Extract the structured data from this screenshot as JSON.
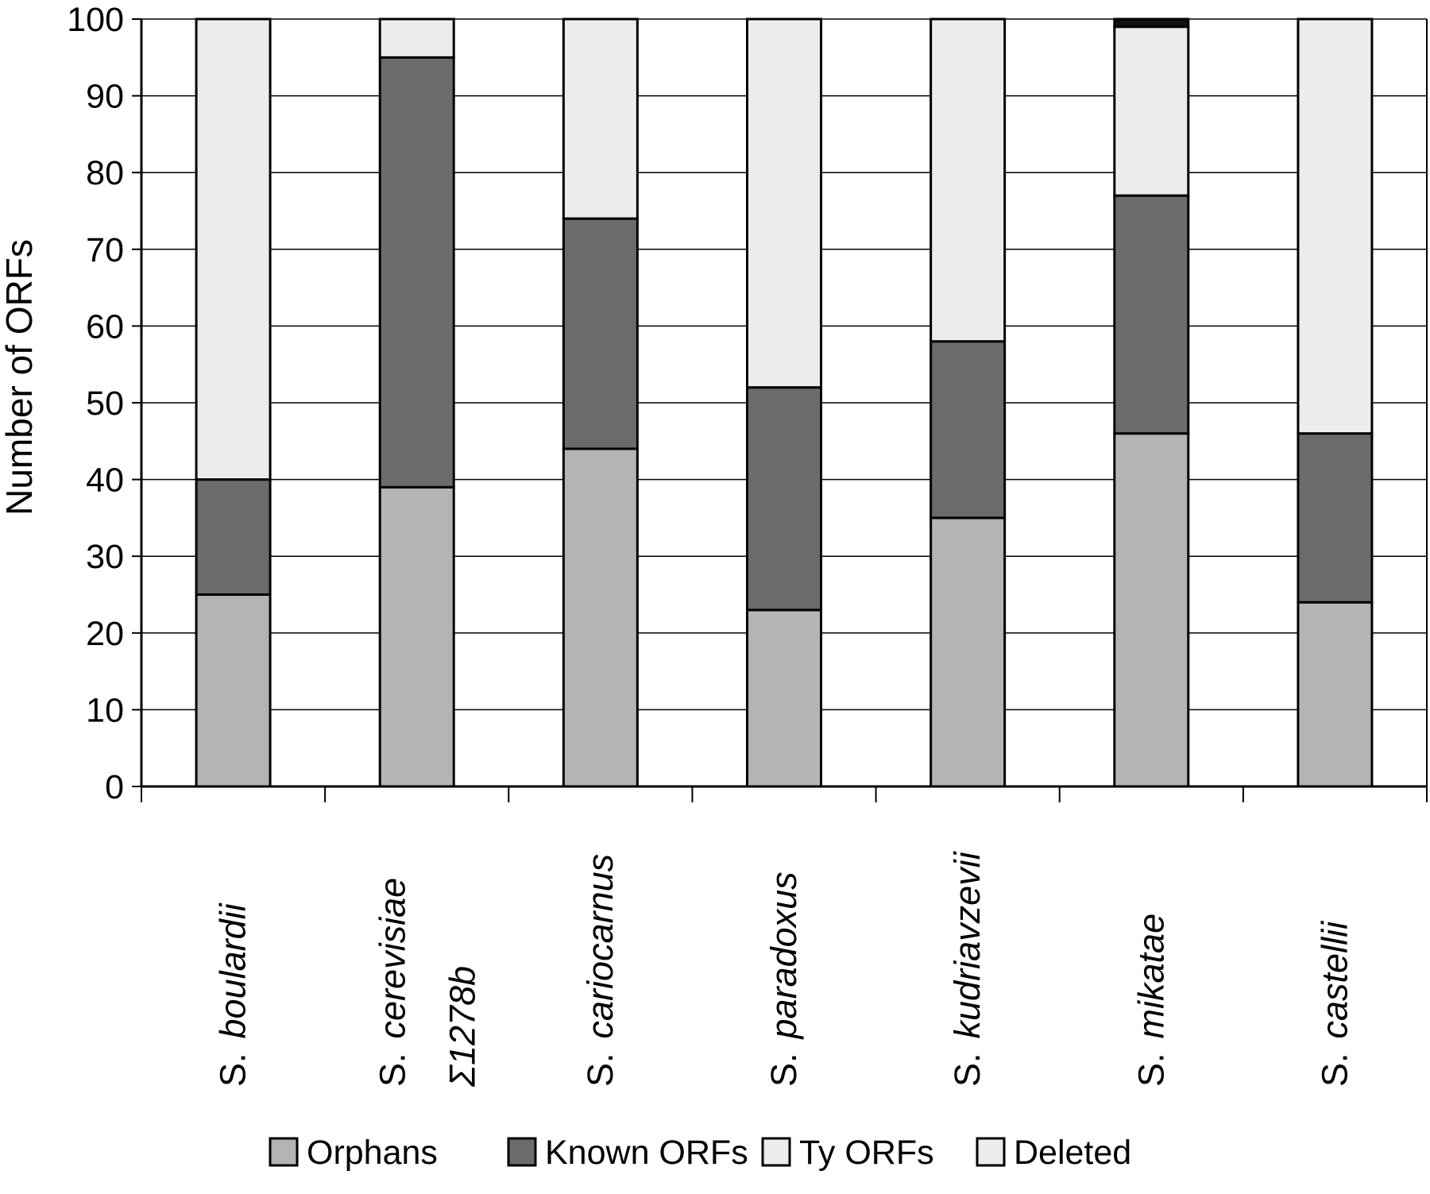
{
  "chart_data": {
    "type": "bar",
    "stacked": true,
    "ylabel": "Number of ORFs",
    "xlabel": "",
    "ylim": [
      0,
      100
    ],
    "yticks": [
      0,
      10,
      20,
      30,
      40,
      50,
      60,
      70,
      80,
      90,
      100
    ],
    "grid": "horizontal",
    "legend_position": "bottom",
    "categories": [
      {
        "genus": "S.",
        "species": "boulardii",
        "strain": ""
      },
      {
        "genus": "S.",
        "species": "cerevisiae",
        "strain": "Σ1278b"
      },
      {
        "genus": "S.",
        "species": "cariocarnus",
        "strain": ""
      },
      {
        "genus": "S.",
        "species": "paradoxus",
        "strain": ""
      },
      {
        "genus": "S.",
        "species": "kudriavzevii",
        "strain": ""
      },
      {
        "genus": "S.",
        "species": "mikatae",
        "strain": ""
      },
      {
        "genus": "S.",
        "species": "castellii",
        "strain": ""
      }
    ],
    "series": [
      {
        "name": "Orphans",
        "color": "#b4b4b4",
        "values": [
          25,
          39,
          44,
          23,
          35,
          46,
          24
        ]
      },
      {
        "name": "Known ORFs",
        "color": "#6b6b6b",
        "values": [
          15,
          56,
          30,
          29,
          23,
          31,
          22
        ]
      },
      {
        "name": "Ty ORFs",
        "color": "#ececec",
        "values": [
          60,
          5,
          26,
          48,
          42,
          22,
          54
        ]
      },
      {
        "name": "Deleted",
        "color": "#111111",
        "values": [
          0,
          0,
          0,
          0,
          0,
          1,
          0
        ]
      }
    ]
  }
}
